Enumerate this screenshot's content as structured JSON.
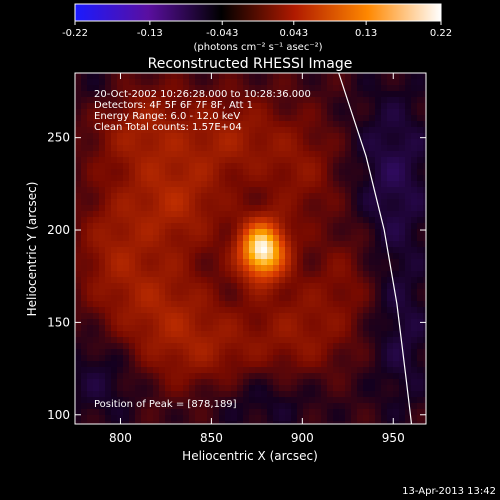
{
  "chart_data": {
    "type": "heatmap",
    "title": "Reconstructed RHESSI Image",
    "xlabel": "Heliocentric X (arcsec)",
    "ylabel": "Heliocentric Y (arcsec)",
    "xlim": [
      775,
      968
    ],
    "ylim": [
      95,
      285
    ],
    "x_ticks": [
      800,
      850,
      900,
      950
    ],
    "y_ticks": [
      100,
      150,
      200,
      250
    ],
    "colorbar": {
      "range": [
        -0.22,
        0.22
      ],
      "ticks": [
        "-0.22",
        "-0.13",
        "-0.043",
        "0.043",
        "0.13",
        "0.22"
      ],
      "unit_label": "(photons cm⁻² s⁻¹ asec⁻²)",
      "colormap": [
        "#1a1aff",
        "#5a0fa0",
        "#000000",
        "#b01a00",
        "#ff8800",
        "#ffffff"
      ]
    },
    "info_lines": [
      "20-Oct-2002 10:26:28.000 to 10:28:36.000",
      "Detectors: 4F 5F 6F 7F 8F, Att 1",
      "Energy Range: 6.0 - 12.0 keV",
      "Clean     Total counts: 1.57E+04"
    ],
    "peak_label": "Position of Peak = [878,189]",
    "peak": {
      "x": 878,
      "y": 189,
      "value": 0.22
    },
    "limb": [
      [
        920,
        285
      ],
      [
        935,
        240
      ],
      [
        945,
        200
      ],
      [
        952,
        160
      ],
      [
        957,
        120
      ],
      [
        960,
        95
      ]
    ],
    "blobs": [
      {
        "x": 878,
        "y": 189,
        "amp": 0.22,
        "sx": 9,
        "sy": 11
      },
      {
        "x": 830,
        "y": 215,
        "amp": 0.06,
        "sx": 20,
        "sy": 18
      },
      {
        "x": 810,
        "y": 255,
        "amp": 0.05,
        "sx": 18,
        "sy": 18
      },
      {
        "x": 860,
        "y": 250,
        "amp": 0.05,
        "sx": 22,
        "sy": 16
      },
      {
        "x": 900,
        "y": 230,
        "amp": 0.035,
        "sx": 15,
        "sy": 20
      },
      {
        "x": 820,
        "y": 160,
        "amp": 0.05,
        "sx": 20,
        "sy": 22
      },
      {
        "x": 850,
        "y": 135,
        "amp": 0.045,
        "sx": 24,
        "sy": 18
      },
      {
        "x": 900,
        "y": 145,
        "amp": 0.04,
        "sx": 18,
        "sy": 22
      },
      {
        "x": 795,
        "y": 190,
        "amp": 0.04,
        "sx": 14,
        "sy": 22
      },
      {
        "x": 925,
        "y": 175,
        "amp": 0.025,
        "sx": 12,
        "sy": 20
      },
      {
        "x": 790,
        "y": 120,
        "amp": -0.03,
        "sx": 16,
        "sy": 18
      },
      {
        "x": 880,
        "y": 110,
        "amp": -0.03,
        "sx": 26,
        "sy": 14
      },
      {
        "x": 950,
        "y": 230,
        "amp": -0.04,
        "sx": 16,
        "sy": 35
      },
      {
        "x": 955,
        "y": 140,
        "amp": -0.03,
        "sx": 12,
        "sy": 30
      },
      {
        "x": 790,
        "y": 275,
        "amp": -0.02,
        "sx": 12,
        "sy": 10
      }
    ]
  },
  "timestamp": "13-Apr-2013 13:42"
}
